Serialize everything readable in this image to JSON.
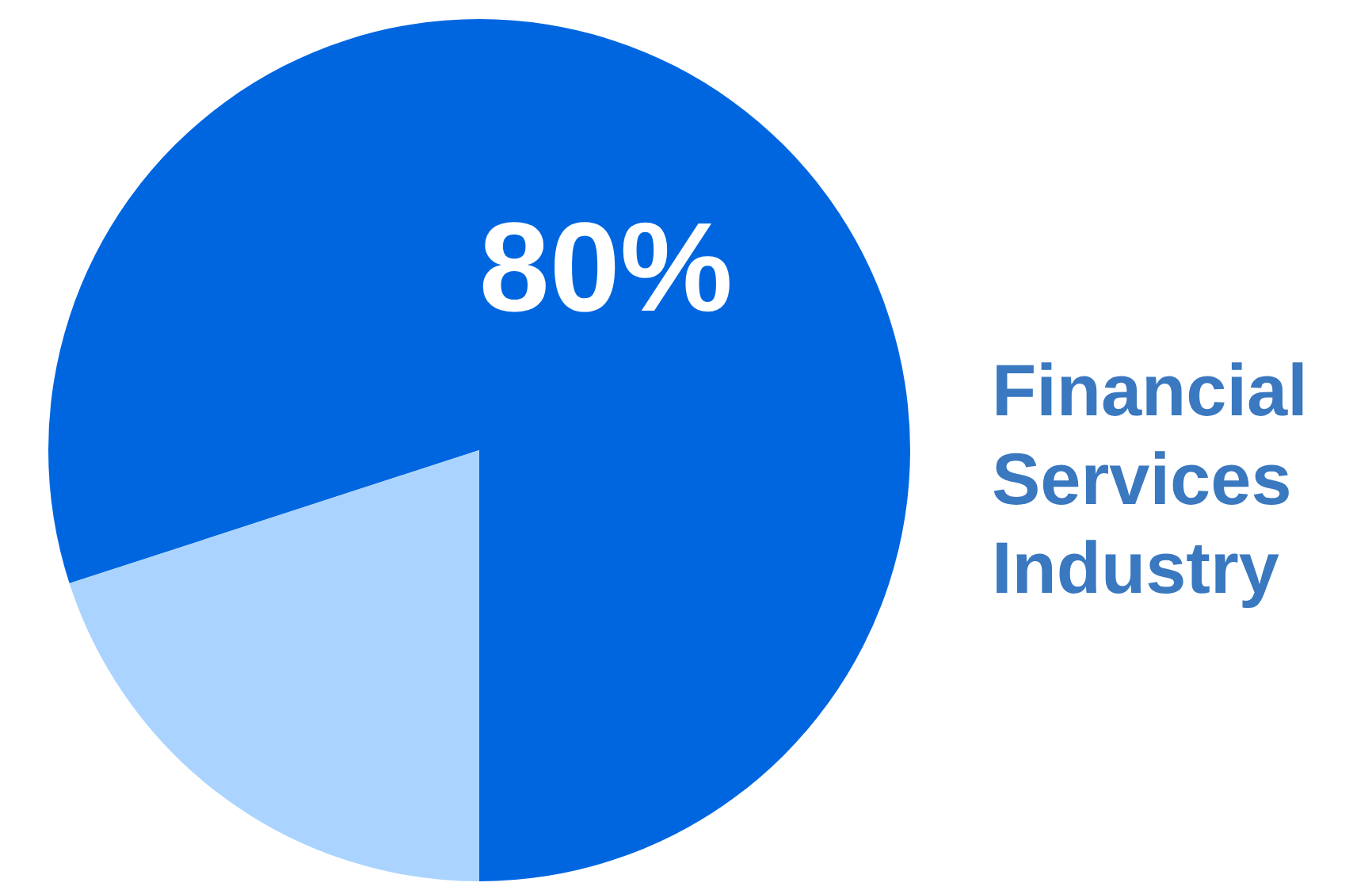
{
  "chart_data": {
    "type": "pie",
    "title": "Financial Services Industry",
    "categories": [
      null,
      null
    ],
    "values": [
      80,
      20
    ],
    "colors": [
      "#0066e0",
      "#aad4ff"
    ],
    "value_labels": [
      "80%",
      null
    ],
    "legend": false
  }
}
